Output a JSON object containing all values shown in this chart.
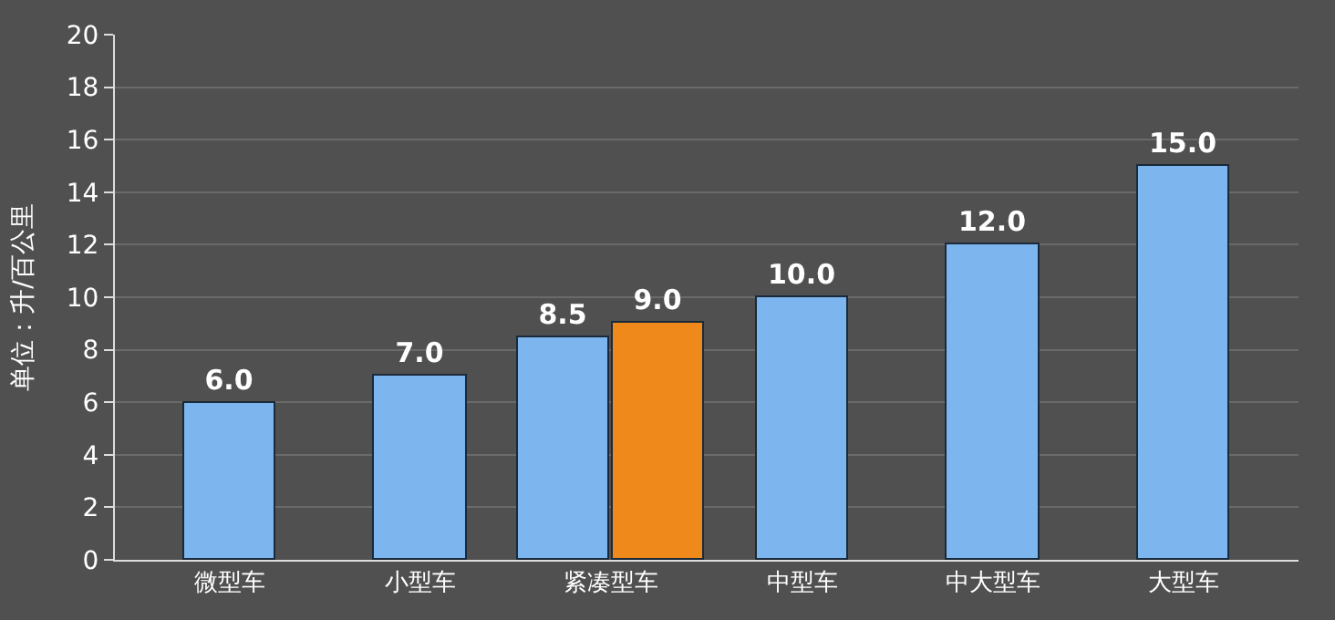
{
  "chart_data": {
    "type": "bar",
    "ylabel": "单位：升/百公里",
    "categories": [
      "微型车",
      "小型车",
      "紧凑型车",
      "中型车",
      "中大型车",
      "大型车"
    ],
    "series": [
      {
        "color": "#7db6ee",
        "values": [
          6.0,
          7.0,
          8.5,
          10.0,
          12.0,
          15.0
        ],
        "value_labels": [
          "6.0",
          "7.0",
          "8.5",
          "10.0",
          "12.0",
          "15.0"
        ]
      },
      {
        "color": "#f0891c",
        "values": [
          null,
          null,
          9.0,
          null,
          null,
          null
        ],
        "value_labels": [
          null,
          null,
          "9.0",
          null,
          null,
          null
        ]
      }
    ],
    "ylim": [
      0,
      20
    ],
    "yticks": [
      0,
      2,
      4,
      6,
      8,
      10,
      12,
      14,
      16,
      18,
      20
    ],
    "grid": "y"
  }
}
